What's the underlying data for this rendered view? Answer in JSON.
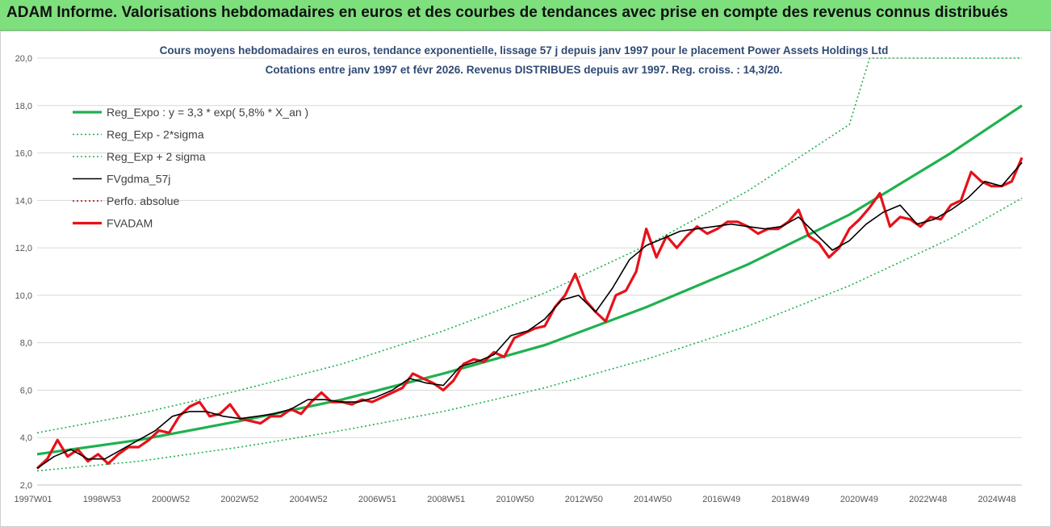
{
  "banner": {
    "title": "ADAM Informe. Valorisations hebdomadaires en euros et des courbes de tendances avec prise en compte des revenus connus distribués"
  },
  "chart_data": {
    "type": "line",
    "title": "Cours moyens hebdomadaires en euros, tendance exponentielle, lissage 57 j depuis janv 1997  pour le placement Power Assets Holdings Ltd",
    "subtitle": "Cotations entre janv 1997 et févr 2026. Revenus DISTRIBUES depuis avr 1997. Reg. croiss. : 14,3/20.",
    "xlabel": "",
    "ylabel": "",
    "ylim": [
      2.0,
      20.0
    ],
    "y_ticks": [
      "2,0",
      "4,0",
      "6,0",
      "8,0",
      "10,0",
      "12,0",
      "14,0",
      "16,0",
      "18,0",
      "20,0"
    ],
    "x_ticks": [
      "1997W01",
      "1998W53",
      "2000W52",
      "2002W52",
      "2004W52",
      "2006W51",
      "2008W51",
      "2010W50",
      "2012W50",
      "2014W50",
      "2016W49",
      "2018W49",
      "2020W49",
      "2022W48",
      "2024W48"
    ],
    "xlim": [
      1997.0,
      2026.1
    ],
    "grid": "horizontal",
    "legend_position": "top-left",
    "colors": {
      "regression": "#1fb14f",
      "sigma": "#1fb14f",
      "smoothed": "#000000",
      "absolute": "#c00000",
      "price": "#e8101a"
    },
    "series": [
      {
        "name": "Reg_Expo : y = 3,3 * exp( 5,8% *  X_an )",
        "style": "solid-thick",
        "color": "#1fb14f",
        "x": [
          1997.0,
          2000.0,
          2003.0,
          2006.0,
          2009.0,
          2012.0,
          2015.0,
          2018.0,
          2021.0,
          2024.0,
          2026.1
        ],
        "values": [
          3.3,
          3.9,
          4.7,
          5.6,
          6.7,
          7.9,
          9.5,
          11.3,
          13.4,
          16.0,
          18.0
        ]
      },
      {
        "name": "Reg_Exp - 2*sigma",
        "style": "dotted",
        "color": "#1fb14f",
        "x": [
          1997.0,
          2000.0,
          2003.0,
          2006.0,
          2009.0,
          2012.0,
          2015.0,
          2018.0,
          2021.0,
          2024.0,
          2026.1
        ],
        "values": [
          2.6,
          3.0,
          3.6,
          4.3,
          5.1,
          6.1,
          7.3,
          8.7,
          10.4,
          12.4,
          14.1
        ]
      },
      {
        "name": "Reg_Exp + 2 sigma",
        "style": "dotted",
        "color": "#1fb14f",
        "x": [
          1997.0,
          2000.0,
          2003.0,
          2006.0,
          2009.0,
          2012.0,
          2015.0,
          2018.0,
          2021.0,
          2021.6,
          2026.1
        ],
        "values": [
          4.2,
          5.0,
          6.0,
          7.1,
          8.5,
          10.1,
          12.1,
          14.4,
          17.2,
          20.0,
          20.0
        ]
      },
      {
        "name": "FVgdma_57j",
        "style": "solid",
        "color": "#000000",
        "x": [
          1997.0,
          1997.5,
          1998.0,
          1998.5,
          1999.0,
          1999.5,
          2000.0,
          2000.5,
          2001.0,
          2001.5,
          2002.0,
          2002.5,
          2003.0,
          2003.5,
          2004.0,
          2004.5,
          2005.0,
          2005.5,
          2006.0,
          2006.5,
          2007.0,
          2007.5,
          2008.0,
          2008.5,
          2009.0,
          2009.5,
          2010.0,
          2010.5,
          2011.0,
          2011.5,
          2012.0,
          2012.5,
          2013.0,
          2013.5,
          2014.0,
          2014.5,
          2015.0,
          2015.5,
          2016.0,
          2016.5,
          2017.0,
          2017.5,
          2018.0,
          2018.5,
          2019.0,
          2019.5,
          2020.0,
          2020.5,
          2021.0,
          2021.5,
          2022.0,
          2022.5,
          2023.0,
          2023.5,
          2024.0,
          2024.5,
          2025.0,
          2025.5,
          2026.1
        ],
        "values": [
          2.7,
          3.2,
          3.5,
          3.1,
          3.1,
          3.5,
          3.9,
          4.3,
          4.9,
          5.1,
          5.1,
          4.9,
          4.8,
          4.9,
          5.0,
          5.2,
          5.6,
          5.6,
          5.5,
          5.5,
          5.7,
          6.0,
          6.5,
          6.3,
          6.2,
          7.0,
          7.2,
          7.5,
          8.3,
          8.5,
          9.0,
          9.8,
          10.0,
          9.3,
          10.3,
          11.5,
          12.1,
          12.4,
          12.7,
          12.8,
          12.9,
          13.0,
          12.9,
          12.8,
          12.9,
          13.3,
          12.6,
          11.9,
          12.3,
          13.0,
          13.5,
          13.8,
          13.0,
          13.2,
          13.6,
          14.1,
          14.8,
          14.6,
          15.6
        ]
      },
      {
        "name": "Perfo. absolue",
        "style": "dotted",
        "color": "#c00000",
        "x": [],
        "values": []
      },
      {
        "name": "FVADAM",
        "style": "solid-thick",
        "color": "#e8101a",
        "x": [
          1997.0,
          1997.3,
          1997.6,
          1997.9,
          1998.2,
          1998.5,
          1998.8,
          1999.1,
          1999.4,
          1999.7,
          2000.0,
          2000.3,
          2000.6,
          2000.9,
          2001.2,
          2001.5,
          2001.8,
          2002.1,
          2002.4,
          2002.7,
          2003.0,
          2003.3,
          2003.6,
          2003.9,
          2004.2,
          2004.5,
          2004.8,
          2005.1,
          2005.4,
          2005.7,
          2006.0,
          2006.3,
          2006.6,
          2006.9,
          2007.2,
          2007.5,
          2007.8,
          2008.1,
          2008.4,
          2008.7,
          2009.0,
          2009.3,
          2009.6,
          2009.9,
          2010.2,
          2010.5,
          2010.8,
          2011.1,
          2011.4,
          2011.7,
          2012.0,
          2012.3,
          2012.6,
          2012.9,
          2013.2,
          2013.5,
          2013.8,
          2014.1,
          2014.4,
          2014.7,
          2015.0,
          2015.3,
          2015.6,
          2015.9,
          2016.2,
          2016.5,
          2016.8,
          2017.1,
          2017.4,
          2017.7,
          2018.0,
          2018.3,
          2018.6,
          2018.9,
          2019.2,
          2019.5,
          2019.8,
          2020.1,
          2020.4,
          2020.7,
          2021.0,
          2021.3,
          2021.6,
          2021.9,
          2022.2,
          2022.5,
          2022.8,
          2023.1,
          2023.4,
          2023.7,
          2024.0,
          2024.3,
          2024.6,
          2024.9,
          2025.2,
          2025.5,
          2025.8,
          2026.1
        ],
        "values": [
          2.7,
          3.1,
          3.9,
          3.2,
          3.5,
          3.0,
          3.3,
          2.9,
          3.3,
          3.6,
          3.6,
          3.9,
          4.3,
          4.2,
          4.9,
          5.3,
          5.5,
          4.9,
          5.0,
          5.4,
          4.8,
          4.7,
          4.6,
          4.9,
          4.9,
          5.2,
          5.0,
          5.5,
          5.9,
          5.5,
          5.5,
          5.4,
          5.6,
          5.5,
          5.7,
          5.9,
          6.1,
          6.7,
          6.5,
          6.3,
          6.0,
          6.4,
          7.1,
          7.3,
          7.2,
          7.6,
          7.4,
          8.2,
          8.4,
          8.6,
          8.7,
          9.5,
          10.0,
          10.9,
          9.8,
          9.3,
          8.9,
          10.0,
          10.2,
          11.0,
          12.8,
          11.6,
          12.5,
          12.0,
          12.5,
          12.9,
          12.6,
          12.8,
          13.1,
          13.1,
          12.9,
          12.6,
          12.8,
          12.8,
          13.1,
          13.6,
          12.5,
          12.2,
          11.6,
          12.0,
          12.8,
          13.2,
          13.7,
          14.3,
          12.9,
          13.3,
          13.2,
          12.9,
          13.3,
          13.2,
          13.8,
          14.0,
          15.2,
          14.8,
          14.6,
          14.6,
          14.8,
          15.8
        ]
      }
    ]
  }
}
